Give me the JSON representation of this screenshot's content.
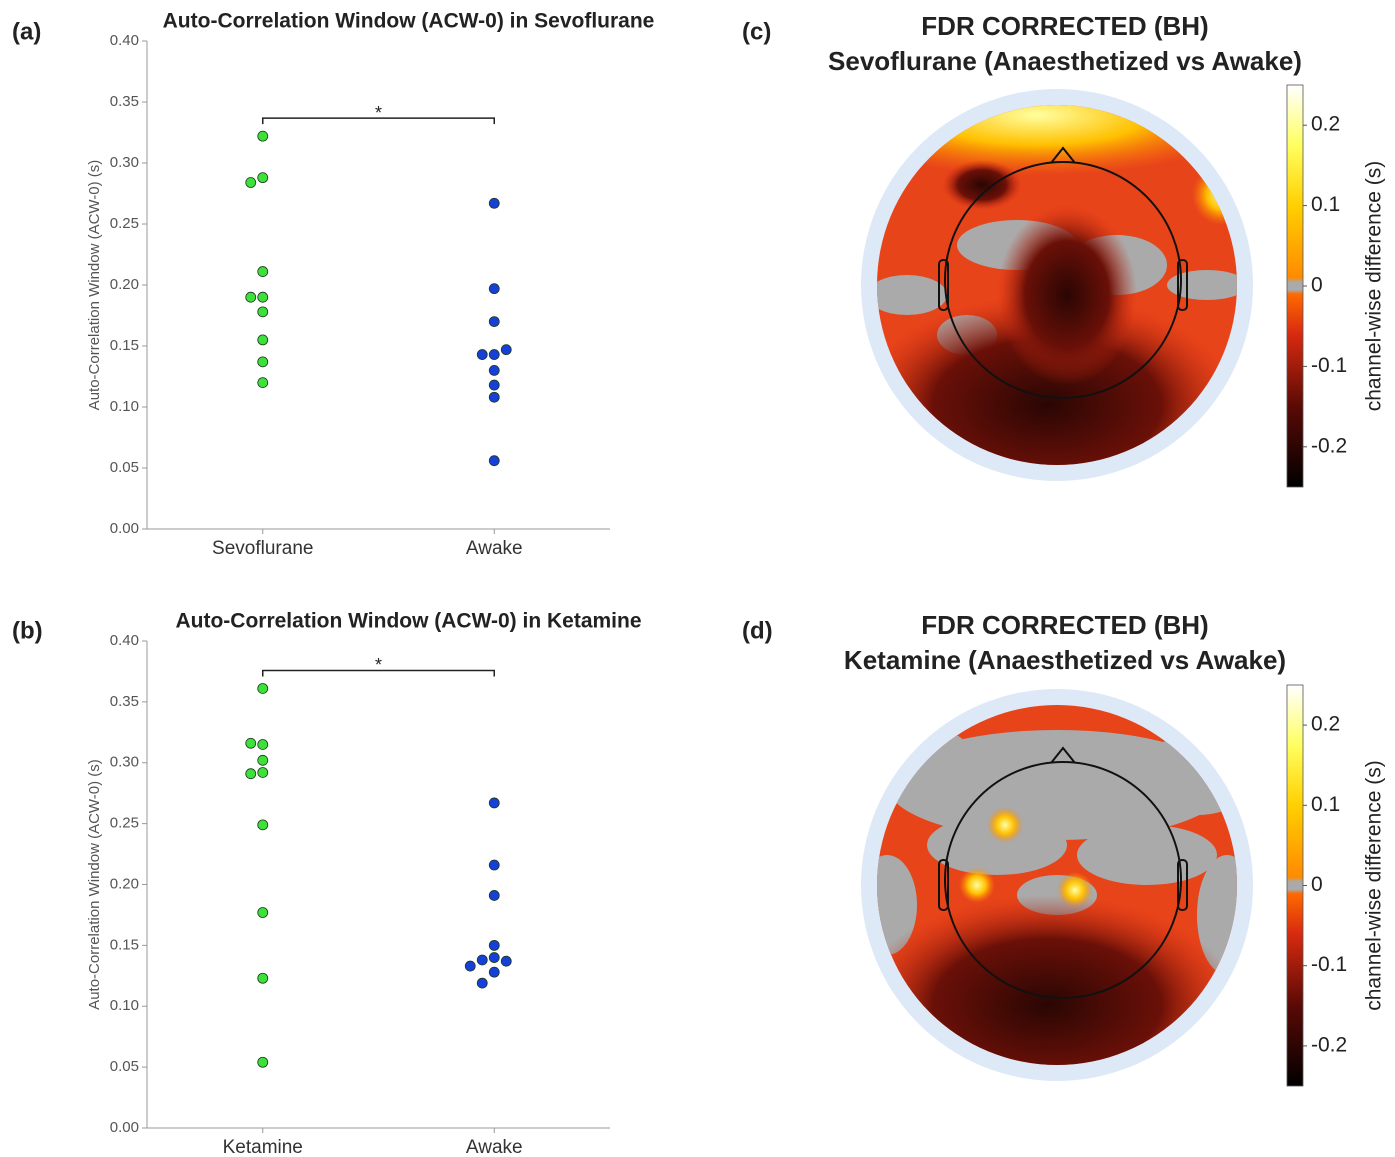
{
  "chart_data": [
    {
      "type": "strip",
      "panel_label": "(a)",
      "title": "Auto-Correlation Window (ACW-0) in Sevoflurane",
      "ylabel": "Auto-Correlation Window (ACW-0) (s)",
      "categories": [
        "Sevoflurane",
        "Awake"
      ],
      "values": [
        [
          0.322,
          0.288,
          0.284,
          0.211,
          0.19,
          0.19,
          0.178,
          0.155,
          0.137,
          0.12
        ],
        [
          0.267,
          0.197,
          0.17,
          0.143,
          0.143,
          0.147,
          0.13,
          0.118,
          0.108,
          0.056
        ]
      ],
      "colors": [
        "#3ee03a",
        "#1740d8"
      ],
      "annotation": "*",
      "ylim": [
        0,
        0.4
      ],
      "yticks": [
        {
          "value": 0,
          "label": "0.00"
        },
        {
          "value": 0.05,
          "label": "0.05"
        },
        {
          "value": 0.1,
          "label": "0.10"
        },
        {
          "value": 0.15,
          "label": "0.15"
        },
        {
          "value": 0.2,
          "label": "0.20"
        },
        {
          "value": 0.25,
          "label": "0.25"
        },
        {
          "value": 0.3,
          "label": "0.30"
        },
        {
          "value": 0.35,
          "label": "0.35"
        },
        {
          "value": 0.4,
          "label": "0.40"
        }
      ]
    },
    {
      "type": "strip",
      "panel_label": "(b)",
      "title": "Auto-Correlation Window (ACW-0) in Ketamine",
      "ylabel": "Auto-Correlation Window (ACW-0) (s)",
      "categories": [
        "Ketamine",
        "Awake"
      ],
      "values": [
        [
          0.361,
          0.315,
          0.316,
          0.302,
          0.292,
          0.291,
          0.249,
          0.177,
          0.123,
          0.054
        ],
        [
          0.267,
          0.216,
          0.191,
          0.15,
          0.14,
          0.138,
          0.137,
          0.133,
          0.128,
          0.119
        ]
      ],
      "colors": [
        "#3ee03a",
        "#1740d8"
      ],
      "annotation": "*",
      "ylim": [
        0,
        0.4
      ],
      "yticks": [
        {
          "value": 0,
          "label": "0.00"
        },
        {
          "value": 0.05,
          "label": "0.05"
        },
        {
          "value": 0.1,
          "label": "0.10"
        },
        {
          "value": 0.15,
          "label": "0.15"
        },
        {
          "value": 0.2,
          "label": "0.20"
        },
        {
          "value": 0.25,
          "label": "0.25"
        },
        {
          "value": 0.3,
          "label": "0.30"
        },
        {
          "value": 0.35,
          "label": "0.35"
        },
        {
          "value": 0.4,
          "label": "0.40"
        }
      ]
    },
    {
      "type": "topomap",
      "panel_label": "(c)",
      "title": [
        "FDR CORRECTED (BH)",
        "Sevoflurane (Anaesthetized vs Awake)"
      ],
      "colorbar_label": "channel-wise difference (s)",
      "clim": [
        -0.25,
        0.25
      ],
      "cticks": [
        0.2,
        0.1,
        0,
        -0.1,
        -0.2
      ]
    },
    {
      "type": "topomap",
      "panel_label": "(d)",
      "title": [
        "FDR CORRECTED (BH)",
        "Ketamine (Anaesthetized vs Awake)"
      ],
      "colorbar_label": "channel-wise difference (s)",
      "clim": [
        -0.25,
        0.25
      ],
      "cticks": [
        0.2,
        0.1,
        0,
        -0.1,
        -0.2
      ]
    }
  ]
}
